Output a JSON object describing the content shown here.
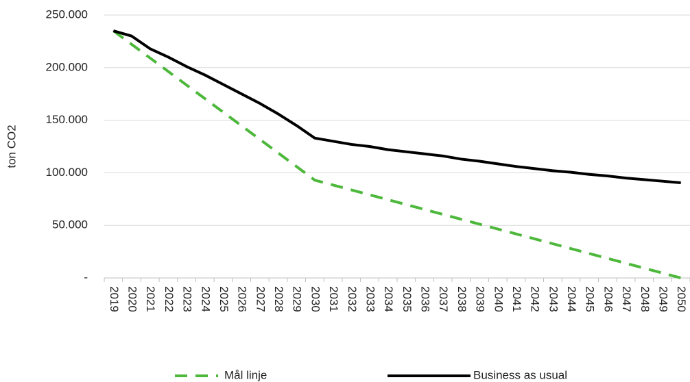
{
  "chart_data": {
    "type": "line",
    "y_label": "ton CO2",
    "categories": [
      "2019",
      "2020",
      "2021",
      "2022",
      "2023",
      "2024",
      "2025",
      "2026",
      "2027",
      "2028",
      "2029",
      "2030",
      "2031",
      "2032",
      "2033",
      "2034",
      "2035",
      "2036",
      "2037",
      "2038",
      "2039",
      "2040",
      "2041",
      "2042",
      "2043",
      "2044",
      "2045",
      "2046",
      "2047",
      "2048",
      "2049",
      "2050"
    ],
    "series": [
      {
        "name": "Mål linje",
        "color": "#4db83b",
        "dashed": true,
        "values": [
          235000,
          222100,
          209200,
          196300,
          183400,
          170500,
          157600,
          144700,
          131800,
          118900,
          106000,
          93000,
          88350,
          83700,
          79050,
          74400,
          69750,
          65100,
          60450,
          55800,
          51150,
          46500,
          41850,
          37200,
          32550,
          27900,
          23250,
          18600,
          13950,
          9300,
          4650,
          0
        ]
      },
      {
        "name": "Business as usual",
        "color": "#000000",
        "dashed": false,
        "values": [
          235000,
          230000,
          218000,
          210000,
          201000,
          193000,
          184000,
          175000,
          166000,
          156000,
          145000,
          133000,
          130000,
          127000,
          125000,
          122000,
          120000,
          118000,
          116000,
          113000,
          111000,
          108500,
          106000,
          104000,
          102000,
          100500,
          98500,
          97000,
          95000,
          93500,
          92000,
          90500
        ]
      }
    ],
    "ylim": [
      0,
      250000
    ],
    "yticks": [
      {
        "value": 0,
        "label": "-"
      },
      {
        "value": 50000,
        "label": "50.000"
      },
      {
        "value": 100000,
        "label": "100.000"
      },
      {
        "value": 150000,
        "label": "150.000"
      },
      {
        "value": 200000,
        "label": "200.000"
      },
      {
        "value": 250000,
        "label": "250.000"
      }
    ],
    "grid": true,
    "legend": "bottom"
  }
}
